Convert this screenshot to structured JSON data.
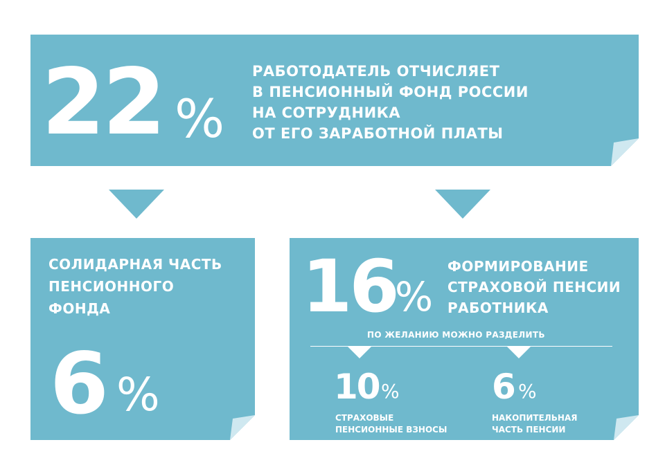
{
  "colors": {
    "card": "#6fb9cd",
    "fold": "#cfe8f0",
    "text": "#ffffff"
  },
  "top": {
    "number": "22",
    "percent": "%",
    "lines": [
      "РАБОТОДАТЕЛЬ ОТЧИСЛЯЕТ",
      "В ПЕНСИОННЫЙ ФОНД РОССИИ",
      "НА СОТРУДНИКА",
      "ОТ ЕГО ЗАРАБОТНОЙ ПЛАТЫ"
    ]
  },
  "left": {
    "lines": [
      "СОЛИДАРНАЯ ЧАСТЬ",
      "ПЕНСИОННОГО",
      "ФОНДА"
    ],
    "number": "6",
    "percent": "%"
  },
  "right": {
    "number": "16",
    "percent": "%",
    "lines": [
      "ФОРМИРОВАНИЕ",
      "СТРАХОВОЙ ПЕНСИИ",
      "РАБОТНИКА"
    ],
    "split_note": "ПО ЖЕЛАНИЮ МОЖНО РАЗДЕЛИТЬ",
    "sub_left": {
      "number": "10",
      "percent": "%",
      "lines": [
        "СТРАХОВЫЕ",
        "ПЕНСИОННЫЕ ВЗНОСЫ"
      ]
    },
    "sub_right": {
      "number": "6",
      "percent": "%",
      "lines": [
        "НАКОПИТЕЛЬНАЯ",
        "ЧАСТЬ ПЕНСИИ"
      ]
    }
  }
}
